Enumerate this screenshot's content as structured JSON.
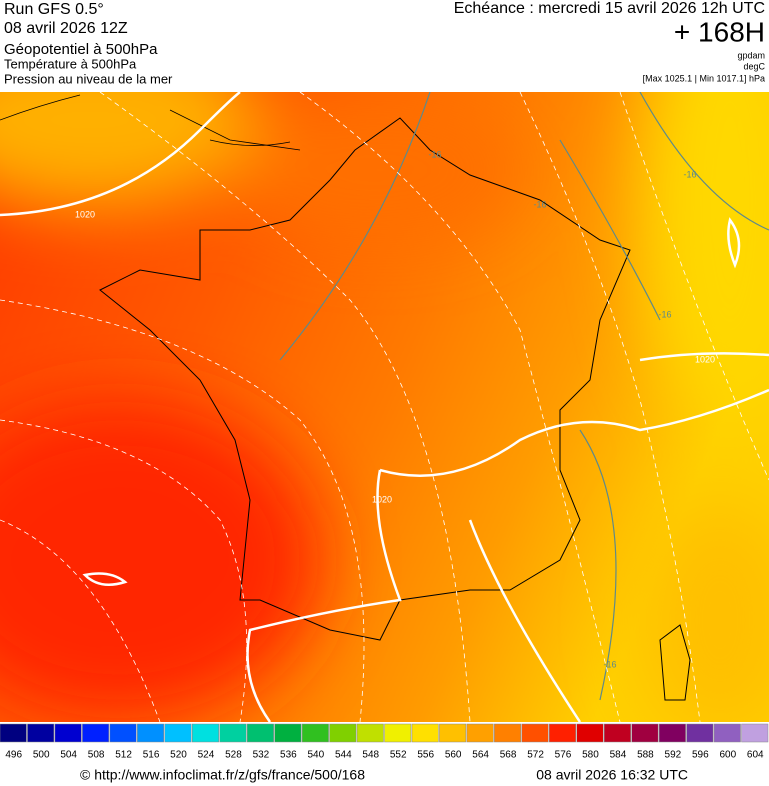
{
  "header": {
    "run": "Run GFS 0.5°",
    "run_date": "08 avril 2026 12Z",
    "field_1": "Géopotentiel à 500hPa",
    "field_2": "Température à 500hPa",
    "field_3": "Pression au niveau de la mer",
    "valid_time": "Echéance : mercredi 15 avril 2026 12h UTC",
    "lead_time": "+ 168H",
    "unit_1": "gpdam",
    "unit_2": "degC",
    "pressure_range": "[Max 1025.1 | Min 1017.1] hPa"
  },
  "map": {
    "contour_labels": [
      "1020",
      "1020",
      "1020",
      "-16",
      "-16",
      "-16",
      "-16",
      "-16"
    ]
  },
  "legend": {
    "labels": [
      496,
      500,
      504,
      508,
      512,
      516,
      520,
      524,
      528,
      532,
      536,
      540,
      544,
      548,
      552,
      556,
      560,
      564,
      568,
      572,
      576,
      580,
      584,
      588,
      592,
      596,
      600,
      604
    ],
    "colors": [
      "#000080",
      "#0000a0",
      "#0000d0",
      "#0020ff",
      "#0050ff",
      "#0090ff",
      "#00c0ff",
      "#00e0e0",
      "#00d0a0",
      "#00c070",
      "#00b040",
      "#30c020",
      "#80d000",
      "#c0e000",
      "#f0f000",
      "#ffe000",
      "#ffc000",
      "#ffa000",
      "#ff8000",
      "#ff5000",
      "#ff2000",
      "#e00000",
      "#c00020",
      "#a00040",
      "#800060",
      "#7030a0",
      "#9060c0",
      "#c0a0e0"
    ]
  },
  "footer": {
    "url": "© http://www.infoclimat.fr/z/gfs/france/500/168",
    "generated": "08 avril 2026 16:32 UTC"
  }
}
